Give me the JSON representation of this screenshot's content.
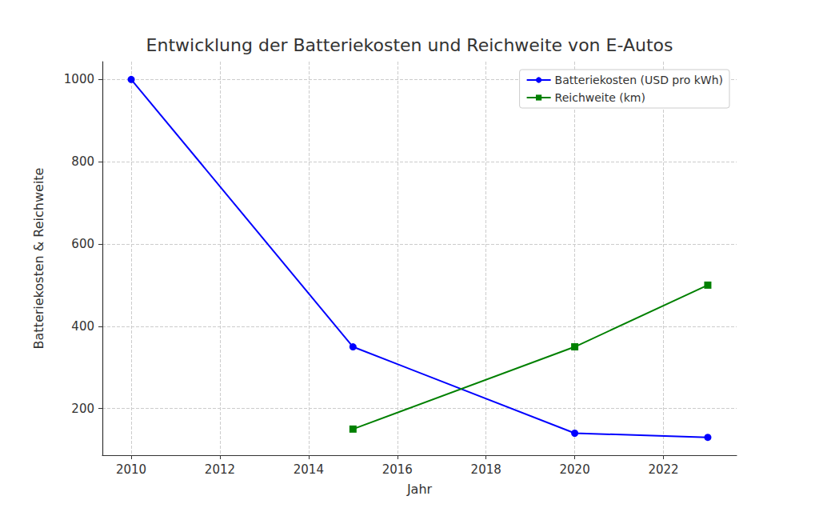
{
  "chart_data": {
    "type": "line",
    "title": "Entwicklung der Batteriekosten und Reichweite von E-Autos",
    "x_label": "Jahr",
    "y_label": "Batteriekosten & Reichweite",
    "x": [
      2010,
      2015,
      2020,
      2023
    ],
    "series": [
      {
        "name": "Batteriekosten (USD pro kWh)",
        "color": "#0000ff",
        "marker": "o",
        "line_style": "solid",
        "values": [
          1000,
          350,
          140,
          130
        ]
      },
      {
        "name": "Reichweite (km)",
        "color": "#008000",
        "marker": "s",
        "line_style": "solid",
        "values": [
          null,
          150,
          350,
          500
        ]
      }
    ],
    "xlim": [
      2009.35,
      2023.65
    ],
    "xticks": [
      2010,
      2012,
      2014,
      2016,
      2018,
      2020,
      2022
    ],
    "ylim": [
      86.5,
      1043.5
    ],
    "yticks": [
      200,
      400,
      600,
      800,
      1000
    ],
    "grid": true,
    "legend": "upper right"
  }
}
